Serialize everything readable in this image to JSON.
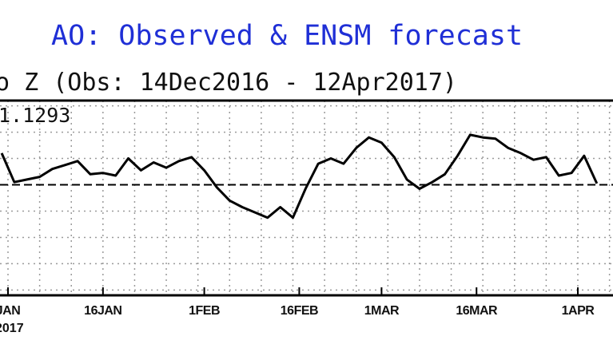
{
  "chart_data": {
    "type": "line",
    "title": "AO: Observed & ENSM forecast",
    "subtitle": "o Z (Obs: 14Dec2016 - 12Apr2017)",
    "annotation": "1.1293",
    "colors": {
      "title": "#1f2fd6",
      "line": "#000000",
      "zero_line": "#000000",
      "grid": "#9a9a9a"
    },
    "grid": true,
    "zero_line_dashed": true,
    "ylim": [
      -4.2,
      3.2
    ],
    "x_tick_labels": [
      "JAN",
      "16JAN",
      "1FEB",
      "16FEB",
      "1MAR",
      "16MAR",
      "1APR"
    ],
    "x_tick_dates": [
      "2017-01-01",
      "2017-01-16",
      "2017-02-01",
      "2017-02-16",
      "2017-03-01",
      "2017-03-16",
      "2017-04-01"
    ],
    "year_label": "2017",
    "series": [
      {
        "x": [
          "2016-12-31",
          "2017-01-02",
          "2017-01-04",
          "2017-01-06",
          "2017-01-08",
          "2017-01-10",
          "2017-01-12",
          "2017-01-14",
          "2017-01-16",
          "2017-01-18",
          "2017-01-20",
          "2017-01-22",
          "2017-01-24",
          "2017-01-26",
          "2017-01-28",
          "2017-01-30",
          "2017-02-01",
          "2017-02-03",
          "2017-02-05",
          "2017-02-07",
          "2017-02-09",
          "2017-02-11",
          "2017-02-13",
          "2017-02-15",
          "2017-02-17",
          "2017-02-19",
          "2017-02-21",
          "2017-02-23",
          "2017-02-25",
          "2017-02-27",
          "2017-03-01",
          "2017-03-03",
          "2017-03-05",
          "2017-03-07",
          "2017-03-09",
          "2017-03-11",
          "2017-03-13",
          "2017-03-15",
          "2017-03-17",
          "2017-03-19",
          "2017-03-21",
          "2017-03-23",
          "2017-03-25",
          "2017-03-27",
          "2017-03-29",
          "2017-03-31",
          "2017-04-02",
          "2017-04-04"
        ],
        "y": [
          1.2,
          0.1,
          0.2,
          0.3,
          0.6,
          0.75,
          0.9,
          0.4,
          0.45,
          0.35,
          1.0,
          0.55,
          0.85,
          0.65,
          0.9,
          1.05,
          0.55,
          -0.1,
          -0.6,
          -0.85,
          -1.05,
          -1.25,
          -0.85,
          -1.25,
          -0.15,
          0.8,
          1.0,
          0.8,
          1.4,
          1.8,
          1.6,
          1.05,
          0.2,
          -0.15,
          0.1,
          0.4,
          1.1,
          1.9,
          1.8,
          1.75,
          1.4,
          1.2,
          0.95,
          1.05,
          0.35,
          0.45,
          1.1,
          0.05
        ]
      }
    ]
  }
}
